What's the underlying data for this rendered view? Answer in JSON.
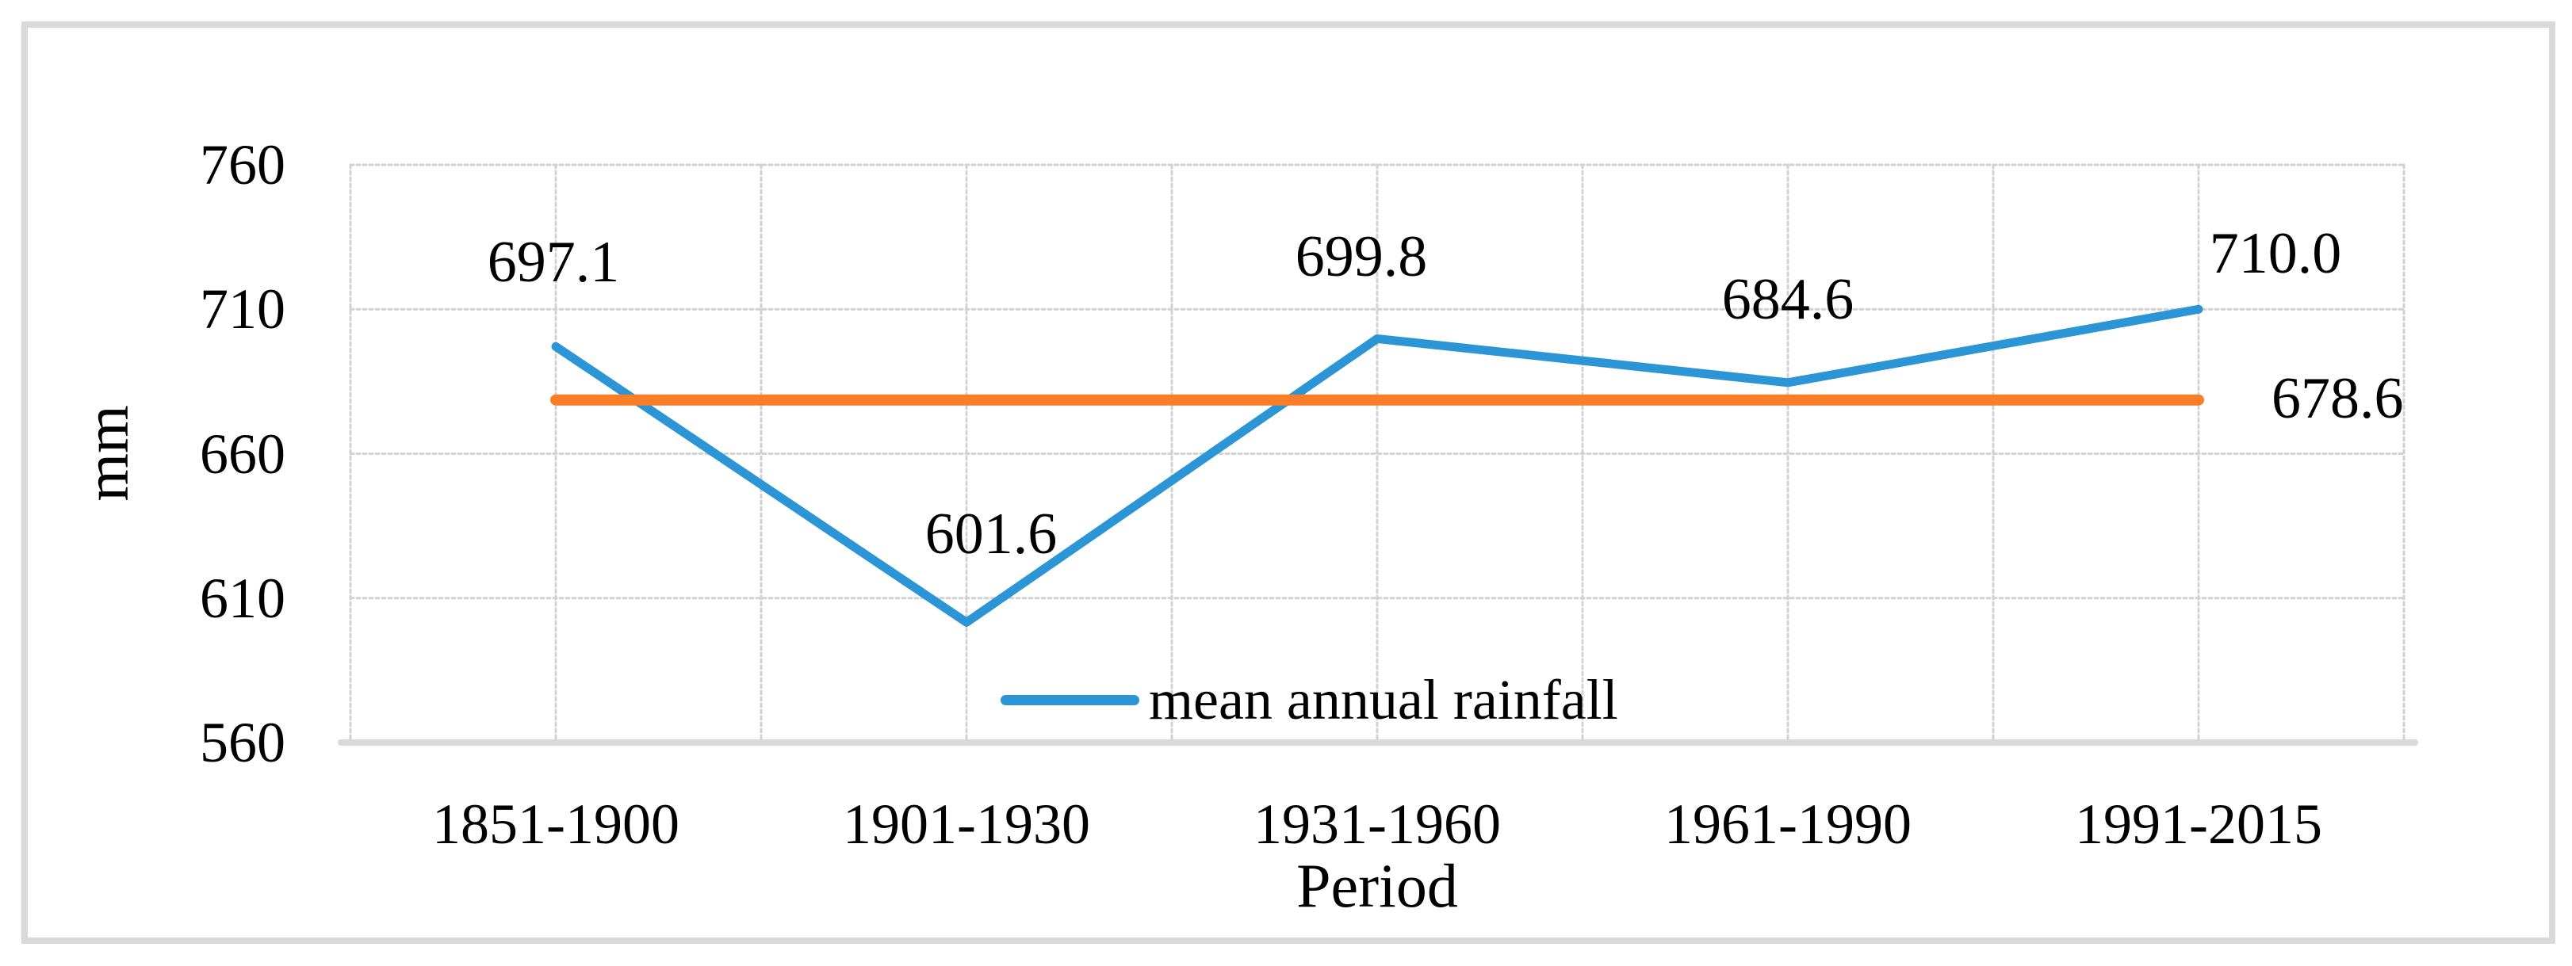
{
  "chart_data": {
    "type": "line",
    "categories": [
      "1851-1900",
      "1901-1930",
      "1931-1960",
      "1961-1990",
      "1991-2015"
    ],
    "series": [
      {
        "name": "mean annual rainfall",
        "values": [
          697.1,
          601.6,
          699.8,
          684.6,
          710.0
        ],
        "color": "#2B95D5"
      }
    ],
    "data_labels": [
      "697.1",
      "601.6",
      "699.8",
      "684.6",
      "710.0"
    ],
    "mean_line": {
      "value": 678.6,
      "label": "678.6",
      "color": "#F97E27"
    },
    "xlabel": "Period",
    "ylabel": "mm",
    "ylim": [
      560,
      760
    ],
    "yticks": [
      560,
      610,
      660,
      710,
      760
    ],
    "grid": true,
    "legend_position": "bottom-center-inside",
    "colors": {
      "gridline": "#D2D2D2",
      "axis_line": "#D9D9D9",
      "border": "#D9D9D9",
      "text": "#000000"
    }
  }
}
